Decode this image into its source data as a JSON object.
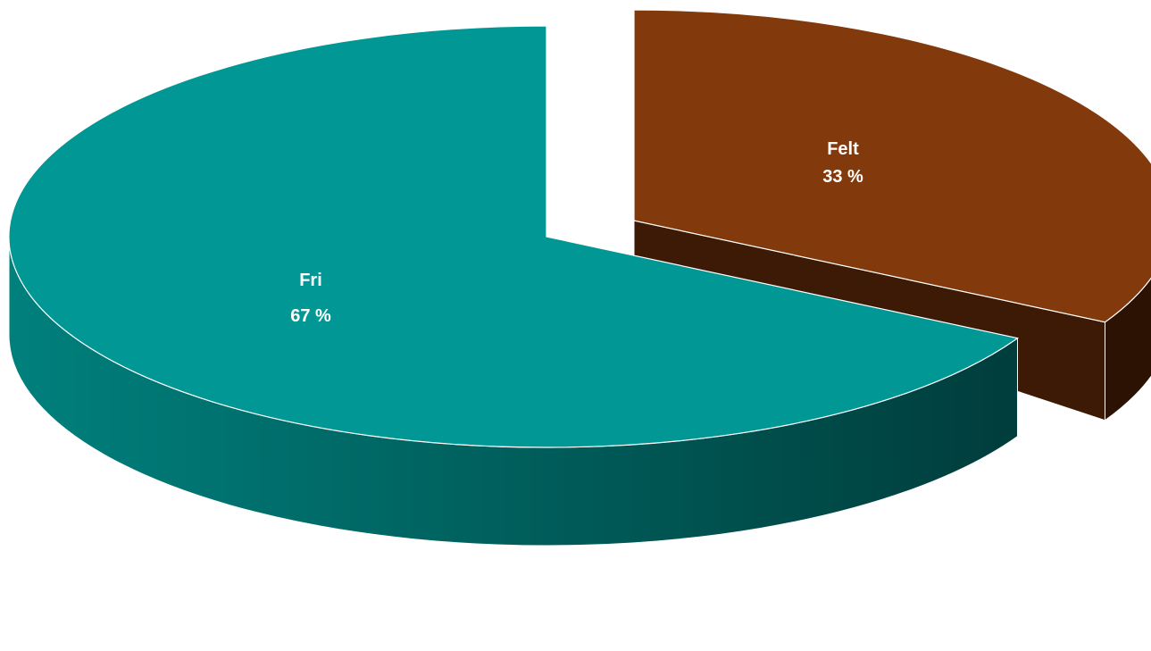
{
  "chart_data": {
    "type": "pie",
    "style": "3d-exploded",
    "slices": [
      {
        "label": "Fri",
        "value": 67,
        "value_label": "67 %",
        "color": "#009794",
        "side_color_light": "#00807d",
        "side_color_dark": "#003d3c"
      },
      {
        "label": "Felt",
        "value": 33,
        "value_label": "33 %",
        "color": "#82390b",
        "side_color_light": "#3c1a05",
        "side_color_dark": "#2c1203"
      }
    ],
    "exploded_slice": "Felt",
    "legend": "none",
    "title": ""
  }
}
